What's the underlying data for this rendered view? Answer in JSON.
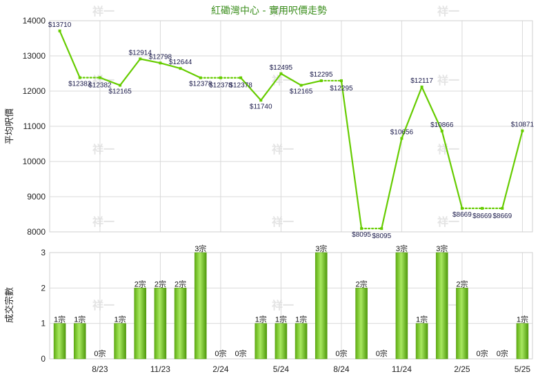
{
  "chart_data": [
    {
      "type": "line",
      "title": "紅磡灣中心 - 實用呎價走勢",
      "ylabel": "平均呎價",
      "ylim": [
        8000,
        14000
      ],
      "yticks": [
        "8000",
        "9000",
        "10000",
        "11000",
        "12000",
        "13000",
        "14000"
      ],
      "grid": true,
      "x": [
        0,
        1,
        2,
        3,
        4,
        5,
        6,
        7,
        8,
        9,
        10,
        11,
        12,
        13,
        14,
        15,
        16,
        17,
        18,
        19,
        20,
        21,
        22,
        23
      ],
      "values": [
        13710,
        12382,
        12382,
        12165,
        12914,
        12798,
        12644,
        12378,
        12378,
        12378,
        11740,
        12495,
        12165,
        12295,
        12295,
        8095,
        8095,
        10656,
        12117,
        10866,
        8669,
        8669,
        8669,
        10871
      ],
      "labels": [
        "$13710",
        "$12382",
        "$12382",
        "$12165",
        "$12914",
        "$12798",
        "$12644",
        "$12378",
        "$12378",
        "$12378",
        "$11740",
        "$12495",
        "$12165",
        "$12295",
        "$12295",
        "$8095",
        "$8095",
        "$10656",
        "$12117",
        "$10866",
        "$8669",
        "$8669",
        "$8669",
        "$10871"
      ],
      "dotted_segments": [
        [
          1,
          2
        ],
        [
          7,
          8
        ],
        [
          8,
          9
        ],
        [
          13,
          14
        ],
        [
          15,
          16
        ],
        [
          20,
          21
        ],
        [
          21,
          22
        ]
      ],
      "color": "#66cc00"
    },
    {
      "type": "bar",
      "ylabel": "成交宗數",
      "ylim": [
        0,
        3
      ],
      "yticks": [
        "0",
        "1",
        "2",
        "3"
      ],
      "grid": true,
      "values": [
        1,
        1,
        0,
        1,
        2,
        2,
        2,
        3,
        0,
        0,
        1,
        1,
        1,
        3,
        0,
        2,
        0,
        3,
        1,
        3,
        2,
        0,
        0,
        1
      ],
      "labels": [
        "1宗",
        "1宗",
        "0宗",
        "1宗",
        "2宗",
        "2宗",
        "2宗",
        "3宗",
        "0宗",
        "0宗",
        "1宗",
        "1宗",
        "1宗",
        "3宗",
        "0宗",
        "2宗",
        "0宗",
        "3宗",
        "1宗",
        "3宗",
        "2宗",
        "0宗",
        "0宗",
        "1宗"
      ],
      "xtick_labels": [
        {
          "index": 2,
          "label": "8/23"
        },
        {
          "index": 5,
          "label": "11/23"
        },
        {
          "index": 8,
          "label": "2/24"
        },
        {
          "index": 11,
          "label": "5/24"
        },
        {
          "index": 14,
          "label": "8/24"
        },
        {
          "index": 17,
          "label": "11/24"
        },
        {
          "index": 20,
          "label": "2/25"
        },
        {
          "index": 23,
          "label": "5/25"
        }
      ],
      "color": "#66cc00"
    }
  ],
  "watermark": "祥一"
}
